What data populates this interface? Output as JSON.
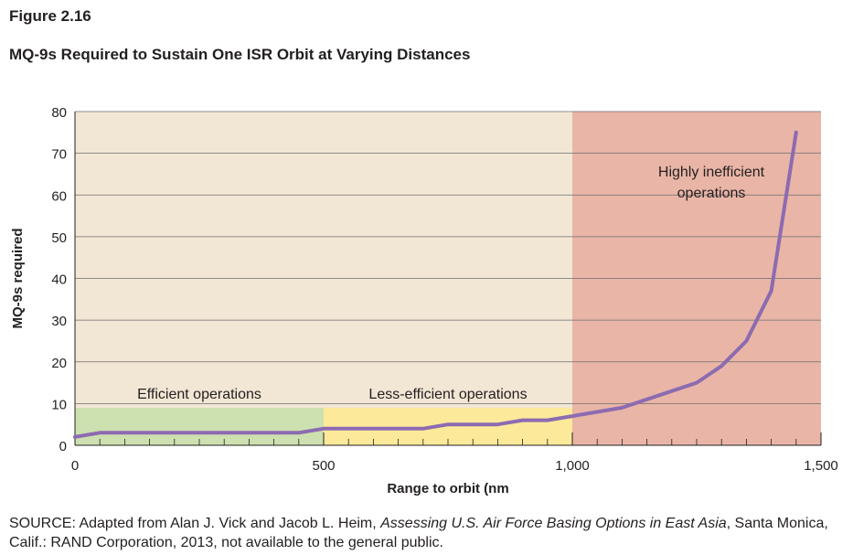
{
  "figure": {
    "label": "Figure 2.16",
    "title": "MQ-9s Required to Sustain One ISR Orbit at Varying Distances"
  },
  "source": {
    "prefix": "SOURCE: Adapted from Alan J. Vick and Jacob L. Heim, ",
    "italic": "Assessing U.S. Air Force Basing Options in East Asia",
    "suffix": ", Santa Monica, Calif.: RAND Corporation, 2013, not available to the general public."
  },
  "chart_data": {
    "type": "line",
    "title": "MQ-9s Required to Sustain One ISR Orbit at Varying Distances",
    "xlabel": "Range to orbit (nm",
    "ylabel": "MQ-9s required",
    "xlim": [
      0,
      1500
    ],
    "ylim": [
      0,
      80
    ],
    "x_ticks": [
      0,
      500,
      1000,
      1500
    ],
    "x_tick_labels": [
      "0",
      "500",
      "1,000",
      "1,500"
    ],
    "x_minor_ticks": [
      50,
      100,
      150,
      200,
      250,
      300,
      350,
      400,
      450,
      550,
      600,
      650,
      700,
      750,
      800,
      850,
      900,
      950,
      1050,
      1100,
      1150,
      1200,
      1250,
      1300,
      1350,
      1400,
      1450
    ],
    "y_ticks": [
      0,
      10,
      20,
      30,
      40,
      50,
      60,
      70,
      80
    ],
    "y_tick_labels": [
      "0",
      "10",
      "20",
      "30",
      "40",
      "50",
      "60",
      "70",
      "80"
    ],
    "grid": true,
    "series": [
      {
        "color": "#8c6bb1",
        "x": [
          0,
          50,
          100,
          150,
          200,
          250,
          300,
          350,
          400,
          450,
          500,
          550,
          600,
          650,
          700,
          750,
          800,
          850,
          900,
          950,
          1000,
          1050,
          1100,
          1150,
          1200,
          1250,
          1300,
          1350,
          1400,
          1450
        ],
        "y": [
          2,
          3,
          3,
          3,
          3,
          3,
          3,
          3,
          3,
          3,
          4,
          4,
          4,
          4,
          4,
          5,
          5,
          5,
          6,
          6,
          7,
          8,
          9,
          11,
          13,
          15,
          19,
          25,
          37,
          75
        ]
      }
    ],
    "regions": [
      {
        "label": "Efficient operations",
        "x_range": [
          0,
          500
        ],
        "y_range": [
          0,
          9
        ],
        "color": "#cde0b0"
      },
      {
        "label": "Less-efficient operations",
        "x_range": [
          500,
          1000
        ],
        "y_range": [
          0,
          9
        ],
        "color": "#fce99a"
      },
      {
        "label": "",
        "x_range": [
          0,
          1000
        ],
        "y_range": [
          9,
          80
        ],
        "color": "#f2e7d4"
      },
      {
        "label_lines": [
          "Highly inefficient",
          "operations"
        ],
        "x_range": [
          1000,
          1500
        ],
        "y_range": [
          0,
          80
        ],
        "color": "#e9b5a6"
      }
    ]
  }
}
